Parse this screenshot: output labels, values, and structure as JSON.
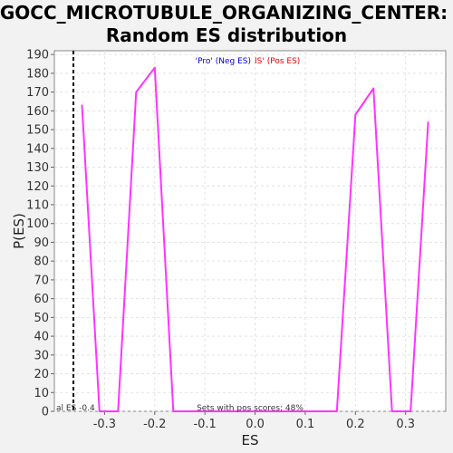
{
  "chart_data": {
    "type": "line",
    "title_line1": "GOCC_MICROTUBULE_ORGANIZING_CENTER:",
    "title_line2": "Random ES distribution",
    "xlabel": "ES",
    "ylabel": "P(ES)",
    "xlim": [
      -0.4,
      0.38
    ],
    "ylim": [
      0,
      192
    ],
    "x_ticks": [
      -0.3,
      -0.2,
      -0.1,
      0.0,
      0.1,
      0.2,
      0.3
    ],
    "x_tick_labels": [
      "-0.3",
      "-0.2",
      "-0.1",
      "0.0",
      "0.1",
      "0.2",
      "0.3"
    ],
    "y_ticks": [
      0,
      10,
      20,
      30,
      40,
      50,
      60,
      70,
      80,
      90,
      100,
      110,
      120,
      130,
      140,
      150,
      160,
      170,
      180,
      190
    ],
    "grid": true,
    "legend": {
      "neg_label": "'Pro' (Neg ES)",
      "pos_label": "IS' (Pos ES)",
      "neg_color": "#0000cc",
      "pos_color": "#dd0000"
    },
    "series": [
      {
        "color": "#ff33ff",
        "x": [
          -0.345,
          -0.31,
          -0.273,
          -0.237,
          -0.2,
          -0.163,
          -0.127,
          0.163,
          0.2,
          0.236,
          0.273,
          0.31,
          0.345
        ],
        "y": [
          163,
          0,
          0,
          170,
          183,
          0,
          0,
          0,
          158,
          172,
          0,
          0,
          154
        ]
      }
    ],
    "actual_es": {
      "x": -0.362,
      "label": "al ES -0.4"
    },
    "footer_text": "Sets with pos scores: 48%"
  }
}
